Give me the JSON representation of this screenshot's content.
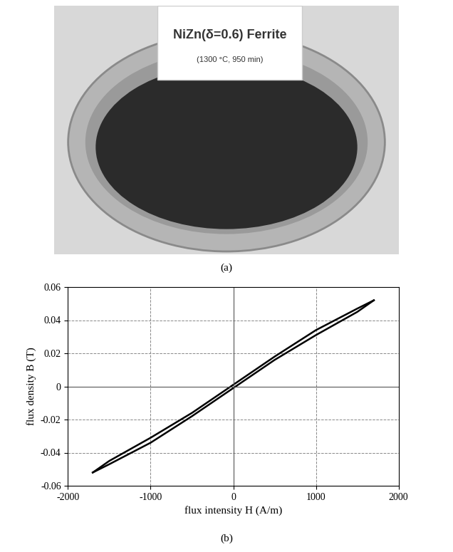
{
  "photo_a": {
    "caption": "(a)",
    "label_title": "NiZn(δ=0.6) Ferrite",
    "label_subtitle": "(1300 °C, 950 min)"
  },
  "caption_b": "(b)",
  "chart_data": {
    "type": "line",
    "x_label": "flux intensity H (A/m)",
    "y_label": "flux density B (T)",
    "x": [
      -1700,
      -1500,
      -1000,
      -500,
      0,
      500,
      1000,
      1500,
      1700
    ],
    "series": [
      {
        "color": "#000000",
        "line_style": "solid",
        "values": [
          -0.052,
          -0.047,
          -0.034,
          -0.018,
          -0.001,
          0.016,
          0.031,
          0.045,
          0.052
        ]
      },
      {
        "color": "#000000",
        "line_style": "solid",
        "values": [
          -0.052,
          -0.045,
          -0.031,
          -0.016,
          0.001,
          0.018,
          0.034,
          0.047,
          0.052
        ]
      }
    ],
    "xlim": [
      -2000,
      2000
    ],
    "xticks": [
      -2000,
      -1000,
      0,
      1000,
      2000
    ],
    "ylim": [
      -0.06,
      0.06
    ],
    "yticks": [
      -0.06,
      -0.04,
      -0.02,
      0,
      0.02,
      0.04,
      0.06
    ],
    "grid": true
  }
}
